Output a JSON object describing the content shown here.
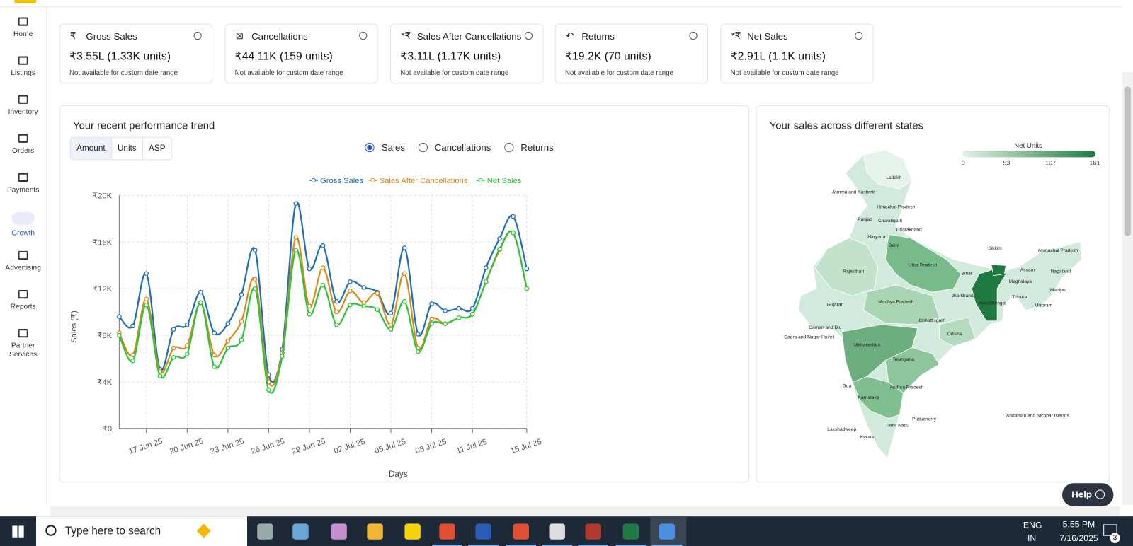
{
  "sidebar": [
    "Home",
    "Listings",
    "Inventory",
    "Orders",
    "Payments",
    "Growth",
    "Advertising",
    "Reports",
    "Partner Services"
  ],
  "active": "Growth",
  "kpis": [
    {
      "icon": "₹",
      "title": "Gross Sales",
      "value": "₹3.55L (1.33K units)",
      "note": "Not available for custom date range"
    },
    {
      "icon": "⊠",
      "title": "Cancellations",
      "value": "₹44.11K (159 units)",
      "note": "Not available for custom date range"
    },
    {
      "icon": "*₹",
      "title": "Sales After Cancellations",
      "value": "₹3.11L (1.17K units)",
      "note": "Not available for custom date range"
    },
    {
      "icon": "↶",
      "title": "Returns",
      "value": "₹19.2K (70 units)",
      "note": "Not available for custom date range"
    },
    {
      "icon": "*₹",
      "title": "Net Sales",
      "value": "₹2.91L (1.1K units)",
      "note": "Not available for custom date range"
    }
  ],
  "performance": {
    "title": "Your recent performance trend",
    "toggle": [
      "Amount",
      "Units",
      "ASP"
    ],
    "toggle_selected": "Amount",
    "radios": [
      "Sales",
      "Cancellations",
      "Returns"
    ],
    "radio_selected": "Sales"
  },
  "chart_data": {
    "type": "line",
    "x_label": "Days",
    "y_label": "Sales (₹)",
    "categories": [
      null,
      null,
      "17 Jun 25",
      null,
      null,
      "20 Jun 25",
      null,
      null,
      "23 Jun 25",
      null,
      null,
      "26 Jun 25",
      null,
      null,
      "29 Jun 25",
      null,
      null,
      "02 Jul 25",
      null,
      null,
      "05 Jul 25",
      null,
      null,
      "08 Jul 25",
      null,
      null,
      "11 Jul 25",
      null,
      null,
      null,
      "15 Jul 25"
    ],
    "series": [
      {
        "name": "Gross Sales",
        "color": "#1f6fb5",
        "values": [
          9600,
          8800,
          13300,
          5100,
          8500,
          8900,
          11700,
          8200,
          9000,
          11500,
          15300,
          4600,
          6800,
          19300,
          13700,
          15700,
          10900,
          12600,
          12100,
          11700,
          9900,
          15500,
          8100,
          10700,
          10100,
          10300,
          10300,
          13800,
          16300,
          18200,
          13700
        ]
      },
      {
        "name": "Sales After Cancellations",
        "color": "#d98a1c",
        "values": [
          8200,
          6300,
          11100,
          4900,
          6900,
          7100,
          10800,
          6300,
          7500,
          9200,
          12800,
          4000,
          6500,
          16400,
          10500,
          13800,
          10000,
          11800,
          10800,
          11600,
          8900,
          13300,
          6900,
          9400,
          9000,
          9500,
          9800,
          12600,
          15300,
          16800,
          12000
        ]
      },
      {
        "name": "Net Sales",
        "color": "#2ec43a",
        "values": [
          8000,
          5800,
          10600,
          4500,
          6100,
          6400,
          10800,
          5300,
          6900,
          7600,
          12000,
          3300,
          6200,
          15300,
          9800,
          12300,
          8900,
          10600,
          10500,
          10200,
          8500,
          10900,
          6600,
          9000,
          9000,
          9500,
          9800,
          12600,
          15400,
          16800,
          12000
        ]
      }
    ],
    "ylim": [
      0,
      20000
    ],
    "yticks": [
      {
        "value": 0,
        "label": "₹0"
      },
      {
        "value": 4000,
        "label": "₹4K"
      },
      {
        "value": 8000,
        "label": "₹8K"
      },
      {
        "value": 12000,
        "label": "₹12K"
      },
      {
        "value": 16000,
        "label": "₹16K"
      },
      {
        "value": 20000,
        "label": "₹20K"
      }
    ],
    "grid": true,
    "legend": "top"
  },
  "map": {
    "title": "Your sales across different states",
    "legend": {
      "title": "Net Units",
      "ticks": [
        0,
        53,
        107,
        161
      ]
    },
    "labels": [
      "Ladakh",
      "Jammu and Kashmir",
      "Himachal Pradesh",
      "Punjab",
      "Chandigarh",
      "Uttarakhand",
      "Haryana",
      "Delhi",
      "Uttar Pradesh",
      "Sikkim",
      "Arunachal Pradesh",
      "Assam",
      "Nagaland",
      "Meghalaya",
      "Rajasthan",
      "Bihar",
      "Manipur",
      "Tripura",
      "Mizoram",
      "Jharkhand",
      "Gujarat",
      "Madhya Pradesh",
      "West Bengal",
      "Chhattisgarh",
      "Daman and Diu",
      "Dadra and Nagar Haveli",
      "Odisha",
      "Maharashtra",
      "Telangana",
      "Goa",
      "Andhra Pradesh",
      "Karnataka",
      "Andaman and Nicobar Islands",
      "Puducherry",
      "Tamil Nadu",
      "Lakshadweep",
      "Kerala"
    ]
  },
  "help": "Help",
  "taskbar": {
    "search": "Type here to search",
    "lang": "ENG",
    "region": "IN",
    "time": "5:55 PM",
    "date": "7/16/2025",
    "notifications": "3"
  }
}
